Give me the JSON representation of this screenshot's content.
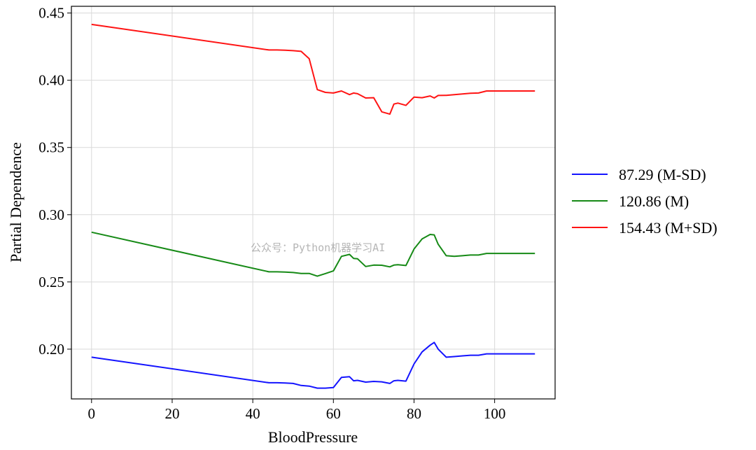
{
  "watermark": "公众号：Python机器学习AI",
  "chart_data": {
    "type": "line",
    "title": "",
    "xlabel": "BloodPressure",
    "ylabel": "Partial Dependence",
    "xlim": [
      -5,
      115
    ],
    "ylim": [
      0.163,
      0.455
    ],
    "xticks": [
      0,
      20,
      40,
      60,
      80,
      100
    ],
    "xtick_labels": [
      "0",
      "20",
      "40",
      "60",
      "80",
      "100"
    ],
    "yticks": [
      0.2,
      0.25,
      0.3,
      0.35,
      0.4,
      0.45
    ],
    "ytick_labels": [
      "0.20",
      "0.25",
      "0.30",
      "0.35",
      "0.40",
      "0.45"
    ],
    "grid": true,
    "legend_position": "outside-right",
    "x": [
      0,
      44,
      46,
      48,
      50,
      52,
      54,
      56,
      58,
      60,
      62,
      64,
      65,
      66,
      68,
      70,
      72,
      74,
      75,
      76,
      78,
      80,
      82,
      84,
      85,
      86,
      88,
      90,
      92,
      94,
      96,
      98,
      100,
      105,
      110
    ],
    "series": [
      {
        "name": "87.29 (M-SD)",
        "color": "#1414ff",
        "values": [
          0.194,
          0.175,
          0.175,
          0.1748,
          0.1745,
          0.173,
          0.1725,
          0.171,
          0.171,
          0.1715,
          0.179,
          0.1795,
          0.1765,
          0.1768,
          0.1755,
          0.176,
          0.1757,
          0.1745,
          0.1765,
          0.1768,
          0.1762,
          0.189,
          0.198,
          0.203,
          0.205,
          0.2,
          0.194,
          0.1945,
          0.195,
          0.1955,
          0.1955,
          0.1965,
          0.1965,
          0.1965,
          0.1965
        ]
      },
      {
        "name": "120.86 (M)",
        "color": "#168a16",
        "values": [
          0.287,
          0.2575,
          0.2575,
          0.2573,
          0.257,
          0.2563,
          0.2563,
          0.2543,
          0.2562,
          0.2582,
          0.269,
          0.2705,
          0.2675,
          0.2672,
          0.2615,
          0.2625,
          0.2624,
          0.2612,
          0.2625,
          0.2628,
          0.2622,
          0.2745,
          0.282,
          0.2853,
          0.285,
          0.278,
          0.2695,
          0.269,
          0.2695,
          0.27,
          0.27,
          0.2712,
          0.2712,
          0.2712,
          0.2712
        ]
      },
      {
        "name": "154.43 (M+SD)",
        "color": "#ff1414",
        "values": [
          0.4415,
          0.4225,
          0.4225,
          0.4223,
          0.422,
          0.4215,
          0.416,
          0.393,
          0.391,
          0.3905,
          0.392,
          0.3893,
          0.3905,
          0.39,
          0.3868,
          0.387,
          0.3765,
          0.3748,
          0.3823,
          0.383,
          0.3813,
          0.3875,
          0.387,
          0.3883,
          0.3868,
          0.3887,
          0.3888,
          0.3893,
          0.3898,
          0.3903,
          0.3905,
          0.392,
          0.392,
          0.392,
          0.392
        ]
      }
    ]
  }
}
